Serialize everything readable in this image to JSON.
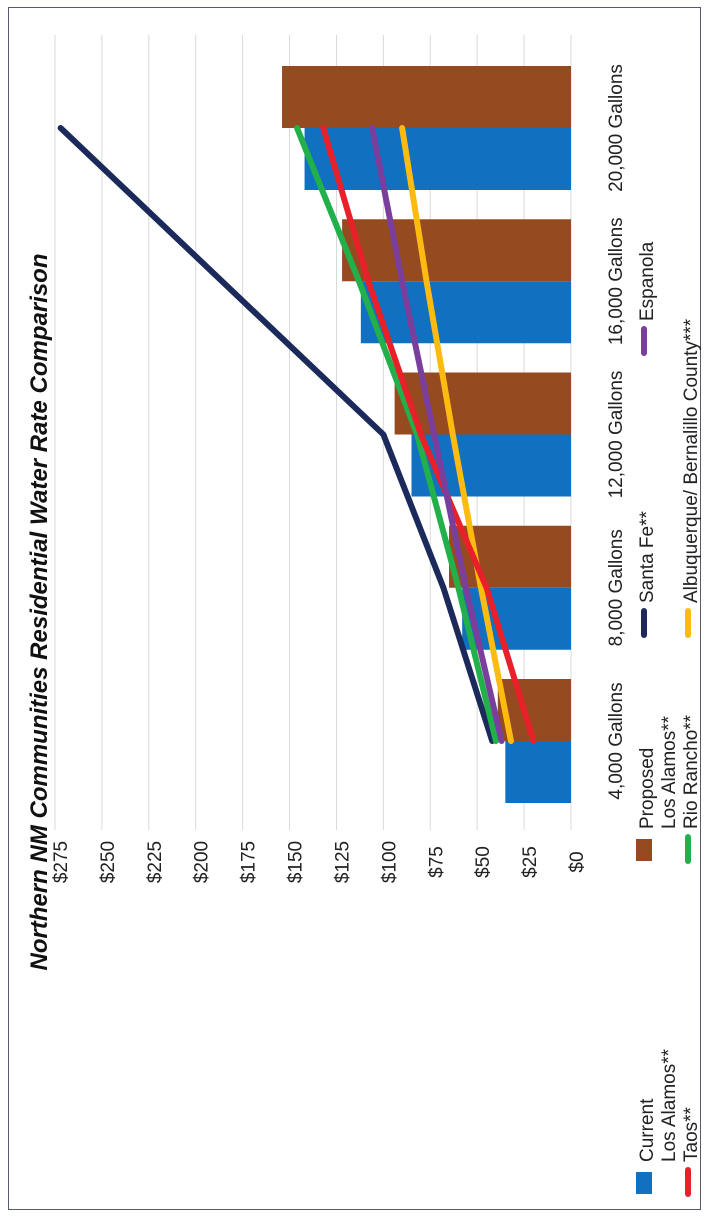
{
  "chart_data": {
    "type": "bar",
    "orientation": "rotated-90-ccw",
    "title": "Northern NM Communities Residential Water Rate Comparison",
    "categories": [
      "4,000 Gallons",
      "8,000 Gallons",
      "12,000 Gallons",
      "16,000 Gallons",
      "20,000 Gallons"
    ],
    "y_ticks": [
      "$0",
      "$25",
      "$50",
      "$75",
      "$100",
      "$125",
      "$150",
      "$175",
      "$200",
      "$225",
      "$250",
      "$275"
    ],
    "ylim": [
      0,
      275
    ],
    "grid": true,
    "legend_position": "bottom",
    "bar_series": [
      {
        "name": "Current",
        "color": "#1170bf",
        "values": [
          35,
          58,
          85,
          112,
          142
        ]
      },
      {
        "name": "Proposed",
        "color": "#954a20",
        "values": [
          39,
          65,
          94,
          122,
          154
        ]
      }
    ],
    "line_series": [
      {
        "name": "Santa Fe**",
        "color": "#1b2a5a",
        "values": [
          42,
          68,
          100,
          null,
          272
        ]
      },
      {
        "name": "Los Alamos**",
        "color": "#9b9b9b",
        "values": [
          null,
          null,
          null,
          null,
          null
        ]
      },
      {
        "name": "Rio Rancho**",
        "color": "#22b04b",
        "values": [
          40,
          60,
          82,
          113,
          146
        ]
      },
      {
        "name": "Albuquerque/ Bernalillo County***",
        "color": "#fdbb11",
        "values": [
          32,
          48,
          63,
          77,
          90
        ]
      },
      {
        "name": "Taos**",
        "color": "#e8202a",
        "values": [
          20,
          45,
          80,
          108,
          132
        ]
      },
      {
        "name": "Espanola",
        "color": "#7a3e9d",
        "values": [
          37,
          56,
          73,
          90,
          106
        ]
      }
    ],
    "legend": [
      {
        "label": "Current",
        "color": "#1170bf",
        "kind": "box"
      },
      {
        "label": "Proposed",
        "color": "#954a20",
        "kind": "box"
      },
      {
        "label": "Los Alamos**",
        "color": "#1b2a5a",
        "kind": "none"
      },
      {
        "label": "Santa Fe**",
        "color": "#1b2a5a",
        "kind": "line"
      },
      {
        "label": "Espanola",
        "color": "#7a3e9d",
        "kind": "line"
      },
      {
        "label": "Los Alamos**",
        "color": "#9b9b9b",
        "kind": "none"
      },
      {
        "label": "Rio Rancho**",
        "color": "#22b04b",
        "kind": "line"
      },
      {
        "label": "Albuquerque/ Bernalillo County***",
        "color": "#fdbb11",
        "kind": "line"
      },
      {
        "label": "Taos**",
        "color": "#e8202a",
        "kind": "line"
      }
    ]
  }
}
